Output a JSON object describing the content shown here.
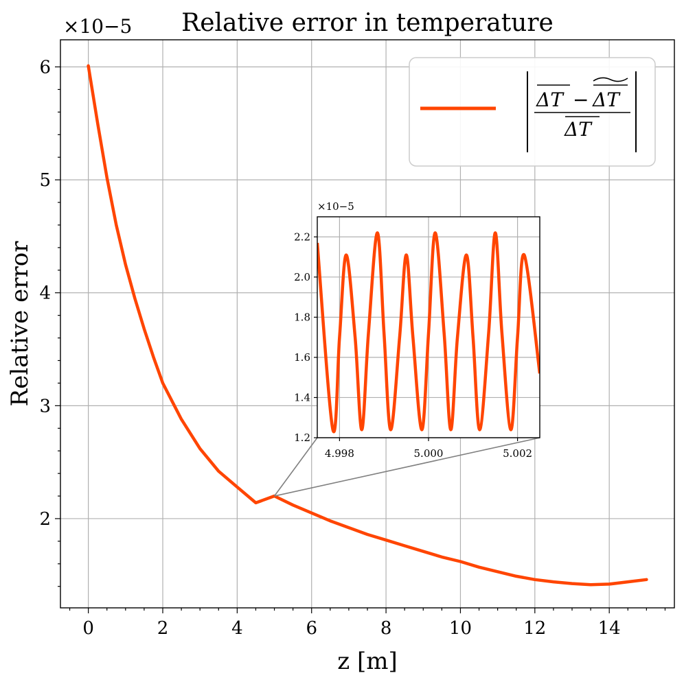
{
  "chart_data": {
    "type": "line",
    "title": "Relative error in temperature",
    "xlabel": "z [m]",
    "ylabel": "Relative error",
    "y_multiplier": "×10−5",
    "xlim": [
      -0.75,
      15.75
    ],
    "ylim": [
      1.21,
      6.24
    ],
    "xticks": [
      0,
      2,
      4,
      6,
      8,
      10,
      12,
      14
    ],
    "yticks": [
      2,
      3,
      4,
      5,
      6
    ],
    "grid": true,
    "legend_position": "top-right",
    "color": "#ff4500",
    "series": [
      {
        "name": "|(ΔT − ΔT~) / ΔT|",
        "x": [
          0,
          0.25,
          0.5,
          0.75,
          1,
          1.25,
          1.5,
          1.75,
          2,
          2.5,
          3,
          3.5,
          4,
          4.5,
          5,
          5.5,
          6,
          6.5,
          7,
          7.5,
          8,
          8.5,
          9,
          9.5,
          10,
          10.5,
          11,
          11.5,
          12,
          12.5,
          13,
          13.5,
          14,
          14.5,
          15
        ],
        "y": [
          6.01,
          5.5,
          5.02,
          4.6,
          4.25,
          3.95,
          3.68,
          3.43,
          3.2,
          2.88,
          2.62,
          2.42,
          2.28,
          2.14,
          2.2,
          2.12,
          2.05,
          1.98,
          1.92,
          1.86,
          1.81,
          1.76,
          1.71,
          1.66,
          1.62,
          1.57,
          1.53,
          1.49,
          1.46,
          1.44,
          1.425,
          1.415,
          1.42,
          1.44,
          1.46
        ]
      }
    ],
    "inset": {
      "xlim": [
        4.9975,
        5.0025
      ],
      "ylim": [
        1.2,
        2.3
      ],
      "xticks": [
        "4.998",
        "5.000",
        "5.002"
      ],
      "xtick_values": [
        4.998,
        5.0,
        5.002
      ],
      "yticks": [
        "1.2",
        "1.4",
        "1.6",
        "1.8",
        "2.0",
        "2.2"
      ],
      "ytick_values": [
        1.2,
        1.4,
        1.6,
        1.8,
        2.0,
        2.2
      ],
      "y_multiplier": "×10−5",
      "zoom_point": [
        5.0,
        2.2
      ],
      "oscillation": {
        "x": [
          4.9975,
          4.99785,
          4.998,
          4.99815,
          4.99835,
          4.9985,
          4.99865,
          4.99885,
          4.999,
          4.99915,
          4.99935,
          4.9995,
          4.99965,
          4.99985,
          5.0,
          5.00015,
          5.00035,
          5.0005,
          5.00065,
          5.00085,
          5.001,
          5.00115,
          5.00135,
          5.0015,
          5.00165,
          5.00185,
          5.002,
          5.00215,
          5.0025
        ],
        "y": [
          2.17,
          1.24,
          1.7,
          2.11,
          1.7,
          1.24,
          1.72,
          2.22,
          1.72,
          1.24,
          1.7,
          2.11,
          1.7,
          1.24,
          1.72,
          2.22,
          1.72,
          1.24,
          1.7,
          2.11,
          1.7,
          1.24,
          1.72,
          2.22,
          1.72,
          1.24,
          1.7,
          2.11,
          1.52
        ]
      }
    }
  }
}
